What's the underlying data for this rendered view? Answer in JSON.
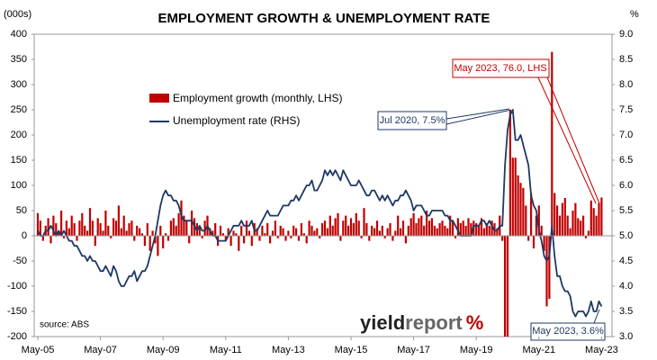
{
  "chart_data": {
    "type": "bar-line",
    "title": "EMPLOYMENT GROWTH & UNEMPLOYMENT RATE",
    "y_label": "(000s)",
    "y2_label": "%",
    "source": "source: ABS",
    "logo": [
      "yield",
      "report",
      "%"
    ],
    "annotations": [
      "May 2023, 76.0, LHS",
      "Jul 2020, 7.5%",
      "May 2023, 3.6%"
    ],
    "categories": [
      "May-05",
      null,
      null,
      null,
      null,
      null,
      null,
      null,
      null,
      null,
      null,
      null,
      null,
      null,
      null,
      null,
      null,
      null,
      null,
      null,
      null,
      null,
      null,
      null,
      "May-07",
      null,
      null,
      null,
      null,
      null,
      null,
      null,
      null,
      null,
      null,
      null,
      null,
      null,
      null,
      null,
      null,
      null,
      null,
      null,
      null,
      null,
      null,
      null,
      "May-09",
      null,
      null,
      null,
      null,
      null,
      null,
      null,
      null,
      null,
      null,
      null,
      null,
      null,
      null,
      null,
      null,
      null,
      null,
      null,
      null,
      null,
      null,
      null,
      "May-11",
      null,
      null,
      null,
      null,
      null,
      null,
      null,
      null,
      null,
      null,
      null,
      null,
      null,
      null,
      null,
      null,
      null,
      null,
      null,
      null,
      null,
      null,
      null,
      "May-13",
      null,
      null,
      null,
      null,
      null,
      null,
      null,
      null,
      null,
      null,
      null,
      null,
      null,
      null,
      null,
      null,
      null,
      null,
      null,
      null,
      null,
      null,
      null,
      "May-15",
      null,
      null,
      null,
      null,
      null,
      null,
      null,
      null,
      null,
      null,
      null,
      null,
      null,
      null,
      null,
      null,
      null,
      null,
      null,
      null,
      null,
      null,
      null,
      "May-17",
      null,
      null,
      null,
      null,
      null,
      null,
      null,
      null,
      null,
      null,
      null,
      null,
      null,
      null,
      null,
      null,
      null,
      null,
      null,
      null,
      null,
      null,
      null,
      "May-19",
      null,
      null,
      null,
      null,
      null,
      null,
      null,
      null,
      null,
      null,
      null,
      null,
      null,
      null,
      null,
      null,
      null,
      null,
      null,
      null,
      null,
      null,
      null,
      "May-21",
      null,
      null,
      null,
      null,
      null,
      null,
      null,
      null,
      null,
      null,
      null,
      null,
      null,
      null,
      null,
      null,
      null,
      null,
      null,
      null,
      null,
      null,
      null,
      "May-23"
    ],
    "series": [
      {
        "name": "Employment growth (monthly, LHS)",
        "color": "#c00000",
        "kind": "bar",
        "values": [
          45,
          30,
          -10,
          20,
          35,
          -15,
          40,
          25,
          10,
          50,
          -5,
          30,
          15,
          40,
          25,
          -10,
          30,
          45,
          20,
          10,
          55,
          30,
          -20,
          35,
          25,
          10,
          50,
          20,
          -5,
          35,
          30,
          60,
          15,
          40,
          10,
          25,
          30,
          -10,
          20,
          15,
          5,
          -20,
          25,
          -30,
          10,
          -15,
          -40,
          20,
          -25,
          5,
          -10,
          30,
          35,
          20,
          45,
          70,
          40,
          30,
          -15,
          50,
          35,
          25,
          20,
          -5,
          30,
          40,
          15,
          10,
          25,
          -20,
          20,
          5,
          -10,
          15,
          -20,
          10,
          5,
          -30,
          20,
          -15,
          30,
          10,
          -20,
          25,
          15,
          -10,
          20,
          5,
          25,
          -15,
          10,
          30,
          -5,
          20,
          15,
          -10,
          10,
          -5,
          20,
          15,
          -10,
          25,
          5,
          -15,
          30,
          20,
          10,
          15,
          -5,
          25,
          30,
          15,
          40,
          20,
          35,
          45,
          -10,
          30,
          40,
          20,
          35,
          25,
          45,
          30,
          -5,
          55,
          25,
          -10,
          20,
          15,
          30,
          10,
          20,
          -5,
          15,
          25,
          -10,
          10,
          40,
          15,
          30,
          -15,
          20,
          35,
          45,
          25,
          35,
          40,
          20,
          50,
          30,
          35,
          20,
          15,
          25,
          30,
          20,
          15,
          40,
          30,
          -5,
          35,
          25,
          30,
          20,
          35,
          25,
          30,
          25,
          20,
          35,
          15,
          25,
          20,
          30,
          25,
          15,
          40,
          -10,
          -220,
          -215,
          250,
          155,
          155,
          120,
          105,
          95,
          60,
          -10,
          85,
          -25,
          40,
          60,
          20,
          -30,
          -140,
          -125,
          365,
          85,
          60,
          40,
          65,
          75,
          40,
          15,
          50,
          65,
          35,
          30,
          40,
          -5,
          10,
          70,
          55,
          40,
          65,
          76
        ]
      },
      {
        "name": "Unemployment rate (RHS)",
        "color": "#1f3864",
        "kind": "line",
        "axis": "y2",
        "values": [
          5.1,
          5.0,
          5.0,
          5.1,
          5.1,
          5.2,
          5.1,
          5.0,
          5.1,
          5.0,
          5.1,
          5.0,
          4.9,
          4.9,
          4.8,
          4.8,
          4.7,
          4.6,
          4.6,
          4.5,
          4.6,
          4.5,
          4.5,
          4.4,
          4.3,
          4.3,
          4.4,
          4.3,
          4.2,
          4.4,
          4.3,
          4.1,
          4.0,
          4.0,
          4.1,
          4.2,
          4.2,
          4.3,
          4.1,
          4.2,
          4.3,
          4.3,
          4.4,
          4.6,
          4.8,
          5.0,
          5.3,
          5.6,
          5.8,
          5.9,
          5.8,
          5.8,
          5.7,
          5.7,
          5.6,
          5.4,
          5.3,
          5.3,
          5.3,
          5.3,
          5.2,
          5.1,
          5.2,
          5.1,
          5.1,
          5.2,
          5.1,
          5.0,
          5.0,
          4.9,
          4.9,
          4.9,
          4.9,
          5.0,
          5.1,
          5.2,
          5.2,
          5.2,
          5.3,
          5.2,
          5.2,
          5.2,
          5.3,
          5.1,
          5.1,
          5.2,
          5.3,
          5.4,
          5.5,
          5.4,
          5.4,
          5.4,
          5.4,
          5.5,
          5.6,
          5.6,
          5.6,
          5.7,
          5.7,
          5.8,
          5.7,
          5.8,
          5.9,
          6.0,
          6.0,
          6.1,
          5.9,
          5.9,
          6.0,
          6.1,
          6.3,
          6.2,
          6.3,
          6.2,
          6.3,
          6.2,
          6.1,
          6.3,
          6.2,
          6.1,
          6.0,
          6.0,
          6.0,
          6.1,
          6.0,
          5.9,
          5.8,
          5.8,
          5.9,
          5.9,
          5.8,
          5.7,
          5.8,
          5.7,
          5.8,
          5.7,
          5.6,
          5.7,
          5.7,
          5.8,
          5.8,
          5.9,
          5.8,
          5.7,
          5.5,
          5.6,
          5.6,
          5.6,
          5.5,
          5.4,
          5.4,
          5.5,
          5.5,
          5.5,
          5.5,
          5.5,
          5.4,
          5.4,
          5.3,
          5.3,
          5.2,
          5.1,
          5.0,
          5.0,
          5.0,
          5.0,
          5.0,
          5.2,
          5.2,
          5.2,
          5.3,
          5.3,
          5.2,
          5.3,
          5.2,
          5.1,
          5.1,
          5.2,
          5.2,
          6.4,
          7.1,
          7.4,
          7.5,
          6.9,
          6.9,
          7.0,
          6.8,
          6.6,
          6.4,
          5.8,
          5.6,
          5.5,
          5.1,
          4.9,
          4.6,
          4.5,
          4.6,
          5.2,
          4.6,
          4.2,
          4.2,
          4.0,
          3.9,
          3.9,
          3.8,
          3.5,
          3.4,
          3.5,
          3.5,
          3.5,
          3.4,
          3.5,
          3.7,
          3.5,
          3.5,
          3.7,
          3.6
        ]
      }
    ],
    "ylim": [
      -200,
      400
    ],
    "yticks": [
      -200,
      -150,
      -100,
      -50,
      0,
      50,
      100,
      150,
      200,
      250,
      300,
      350,
      400
    ],
    "y2lim": [
      3,
      9
    ],
    "y2ticks": [
      {
        "value": 3,
        "label": "3.0"
      },
      {
        "value": 3.5,
        "label": "3.5"
      },
      {
        "value": 4,
        "label": "4.0"
      },
      {
        "value": 4.5,
        "label": "4.5"
      },
      {
        "value": 5,
        "label": "5.0"
      },
      {
        "value": 5.5,
        "label": "5.5"
      },
      {
        "value": 6,
        "label": "6.0"
      },
      {
        "value": 6.5,
        "label": "6.5"
      },
      {
        "value": 7,
        "label": "7.0"
      },
      {
        "value": 7.5,
        "label": "7.5"
      },
      {
        "value": 8,
        "label": "8.0"
      },
      {
        "value": 8.5,
        "label": "8.5"
      },
      {
        "value": 9,
        "label": "9.0"
      }
    ],
    "grid": false
  }
}
